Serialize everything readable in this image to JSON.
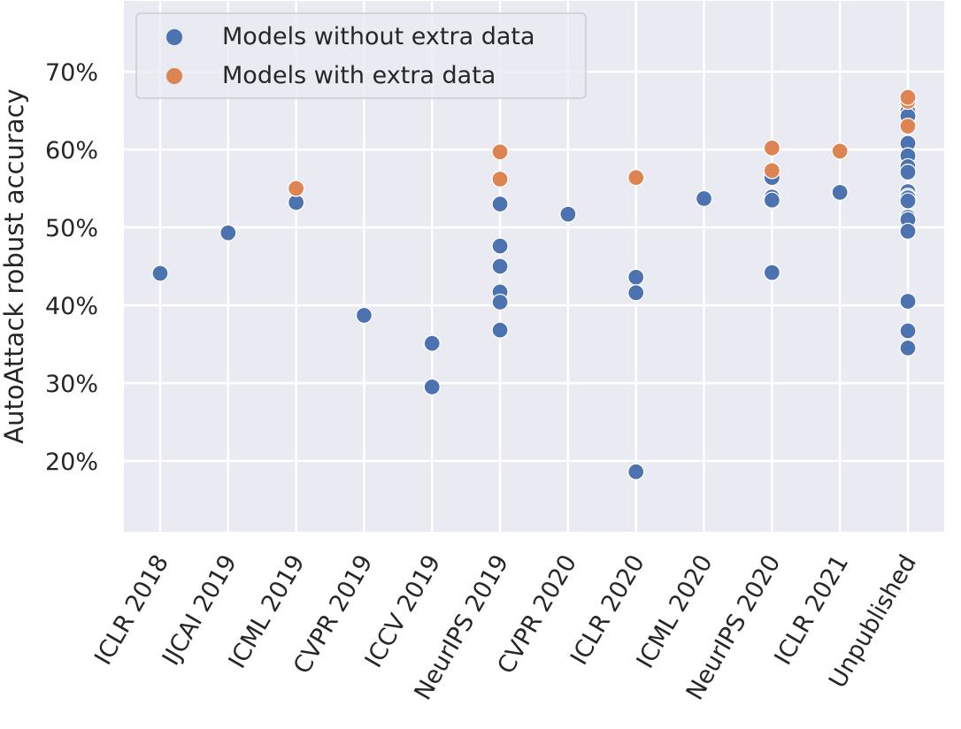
{
  "chart_data": {
    "type": "scatter",
    "title": "",
    "xlabel": "",
    "ylabel": "AutoAttack robust accuracy",
    "categories": [
      "ICLR 2018",
      "IJCAI 2019",
      "ICML 2019",
      "CVPR 2019",
      "ICCV 2019",
      "NeurIPS 2019",
      "CVPR 2020",
      "ICLR 2020",
      "ICML 2020",
      "NeurIPS 2020",
      "ICLR 2021",
      "Unpublished"
    ],
    "ylim": [
      10.9,
      79.1
    ],
    "yticks": [
      20,
      30,
      40,
      50,
      60,
      70
    ],
    "ytick_labels": [
      "20%",
      "30%",
      "40%",
      "50%",
      "60%",
      "70%"
    ],
    "grid": true,
    "legend": {
      "placement": "top-left",
      "entries": [
        "Models without extra data",
        "Models with extra data"
      ]
    },
    "series": [
      {
        "name": "Models without extra data",
        "color": "#4c72b0",
        "points": [
          {
            "x": "ICLR 2018",
            "y": 44.1
          },
          {
            "x": "IJCAI 2019",
            "y": 49.3
          },
          {
            "x": "ICML 2019",
            "y": 53.2
          },
          {
            "x": "CVPR 2019",
            "y": 38.7
          },
          {
            "x": "ICCV 2019",
            "y": 35.1
          },
          {
            "x": "ICCV 2019",
            "y": 29.5
          },
          {
            "x": "NeurIPS 2019",
            "y": 53.0
          },
          {
            "x": "NeurIPS 2019",
            "y": 47.6
          },
          {
            "x": "NeurIPS 2019",
            "y": 45.0
          },
          {
            "x": "NeurIPS 2019",
            "y": 41.7
          },
          {
            "x": "NeurIPS 2019",
            "y": 40.4
          },
          {
            "x": "NeurIPS 2019",
            "y": 36.8
          },
          {
            "x": "CVPR 2020",
            "y": 51.7
          },
          {
            "x": "ICLR 2020",
            "y": 43.6
          },
          {
            "x": "ICLR 2020",
            "y": 41.6
          },
          {
            "x": "ICLR 2020",
            "y": 18.6
          },
          {
            "x": "ICML 2020",
            "y": 53.7
          },
          {
            "x": "NeurIPS 2020",
            "y": 56.4
          },
          {
            "x": "NeurIPS 2020",
            "y": 53.9
          },
          {
            "x": "NeurIPS 2020",
            "y": 53.5
          },
          {
            "x": "NeurIPS 2020",
            "y": 44.2
          },
          {
            "x": "ICLR 2021",
            "y": 54.5
          },
          {
            "x": "Unpublished",
            "y": 65.3
          },
          {
            "x": "Unpublished",
            "y": 64.9
          },
          {
            "x": "Unpublished",
            "y": 64.3
          },
          {
            "x": "Unpublished",
            "y": 60.8
          },
          {
            "x": "Unpublished",
            "y": 59.2
          },
          {
            "x": "Unpublished",
            "y": 57.8
          },
          {
            "x": "Unpublished",
            "y": 57.1
          },
          {
            "x": "Unpublished",
            "y": 54.6
          },
          {
            "x": "Unpublished",
            "y": 54.0
          },
          {
            "x": "Unpublished",
            "y": 53.8
          },
          {
            "x": "Unpublished",
            "y": 53.4
          },
          {
            "x": "Unpublished",
            "y": 51.3
          },
          {
            "x": "Unpublished",
            "y": 51.0
          },
          {
            "x": "Unpublished",
            "y": 49.5
          },
          {
            "x": "Unpublished",
            "y": 40.5
          },
          {
            "x": "Unpublished",
            "y": 36.7
          },
          {
            "x": "Unpublished",
            "y": 34.5
          }
        ]
      },
      {
        "name": "Models with extra data",
        "color": "#dd8452",
        "points": [
          {
            "x": "ICML 2019",
            "y": 55.0
          },
          {
            "x": "NeurIPS 2019",
            "y": 59.7
          },
          {
            "x": "NeurIPS 2019",
            "y": 56.2
          },
          {
            "x": "ICLR 2020",
            "y": 56.4
          },
          {
            "x": "NeurIPS 2020",
            "y": 60.2
          },
          {
            "x": "NeurIPS 2020",
            "y": 57.3
          },
          {
            "x": "ICLR 2021",
            "y": 59.8
          },
          {
            "x": "Unpublished",
            "y": 66.2
          },
          {
            "x": "Unpublished",
            "y": 66.7
          },
          {
            "x": "Unpublished",
            "y": 63.0
          }
        ]
      }
    ]
  }
}
